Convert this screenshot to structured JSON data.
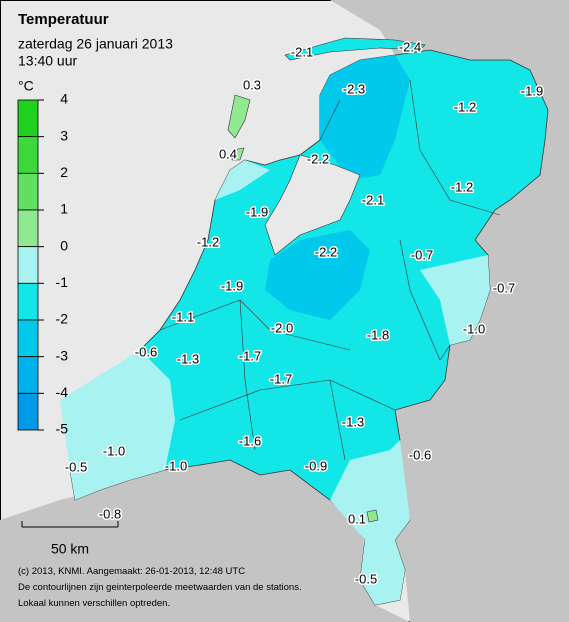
{
  "header": {
    "title": "Temperatuur",
    "date": "zaterdag 26 januari 2013",
    "time": "13:40 uur"
  },
  "scale": {
    "unit": "°C",
    "ticks": [
      4,
      3,
      2,
      1,
      0,
      -1,
      -2,
      -3,
      -4,
      -5
    ],
    "colors": [
      "#1ed21e",
      "#3cd83c",
      "#5fe05f",
      "#90e890",
      "#a8f2f2",
      "#12e6e6",
      "#00c9ec",
      "#00b2ec",
      "#009ae8"
    ]
  },
  "stations": [
    "-2.1",
    "-2.4",
    "0.3",
    "-2.3",
    "-1.2",
    "-1.9",
    "0.4",
    "-2.2",
    "-2.1",
    "-1.2",
    "-1.9",
    "-1.2",
    "-2.2",
    "-0.7",
    "-0.7",
    "-1.9",
    "-1.1",
    "-2.0",
    "-1.8",
    "-1.0",
    "-0.6",
    "-1.3",
    "-1.7",
    "-1.7",
    "-1.3",
    "-1.6",
    "-0.6",
    "-1.0",
    "-1.0",
    "-0.5",
    "-0.9",
    "-0.8",
    "0.1",
    "-0.5"
  ],
  "scale_bar": "50 km",
  "footer": [
    "(c) 2013, KNMI. Aangemaakt: 26-01-2013, 12:48 UTC",
    "De contourlijnen zijn geinterpoleerde meetwaarden van de stations.",
    "Lokaal kunnen verschillen optreden."
  ]
}
